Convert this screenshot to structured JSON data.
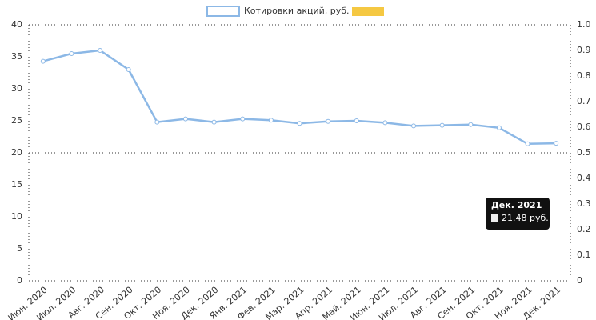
{
  "chart_data": {
    "type": "line",
    "legend": "Котировки акций, руб.",
    "categories": [
      "Июн. 2020",
      "Июл. 2020",
      "Авг. 2020",
      "Сен. 2020",
      "Окт. 2020",
      "Ноя. 2020",
      "Дек. 2020",
      "Янв. 2021",
      "Фев. 2021",
      "Мар. 2021",
      "Апр. 2021",
      "Май. 2021",
      "Июн. 2021",
      "Июл. 2021",
      "Авг. 2021",
      "Сен. 2021",
      "Окт. 2021",
      "Ноя. 2021",
      "Дек. 2021"
    ],
    "series": [
      {
        "name": "Котировки акций, руб.",
        "color": "#8cb8e6",
        "values": [
          34.3,
          35.5,
          36,
          33,
          24.8,
          25.3,
          24.8,
          25.3,
          25.1,
          24.6,
          24.9,
          25,
          24.7,
          24.2,
          24.3,
          24.4,
          23.9,
          21.4,
          21.48
        ]
      }
    ],
    "ylim": [
      0,
      40
    ],
    "yticks": [
      0,
      5,
      10,
      15,
      20,
      25,
      30,
      35,
      40
    ],
    "y2lim": [
      0,
      1
    ],
    "y2ticks": [
      {
        "value": 0,
        "label": "0"
      },
      {
        "value": 0.1,
        "label": "0.1"
      },
      {
        "value": 0.2,
        "label": "0.2"
      },
      {
        "value": 0.3,
        "label": "0.3"
      },
      {
        "value": 0.4,
        "label": "0.4"
      },
      {
        "value": 0.5,
        "label": "0.5"
      },
      {
        "value": 0.6,
        "label": "0.6"
      },
      {
        "value": 0.7,
        "label": "0.7"
      },
      {
        "value": 0.8,
        "label": "0.8"
      },
      {
        "value": 0.9,
        "label": "0.9"
      },
      {
        "value": 1,
        "label": "1.0"
      }
    ],
    "ygrid": [
      20,
      40
    ],
    "tooltip": {
      "title": "Дек. 2021",
      "text": "21.48 руб."
    }
  }
}
